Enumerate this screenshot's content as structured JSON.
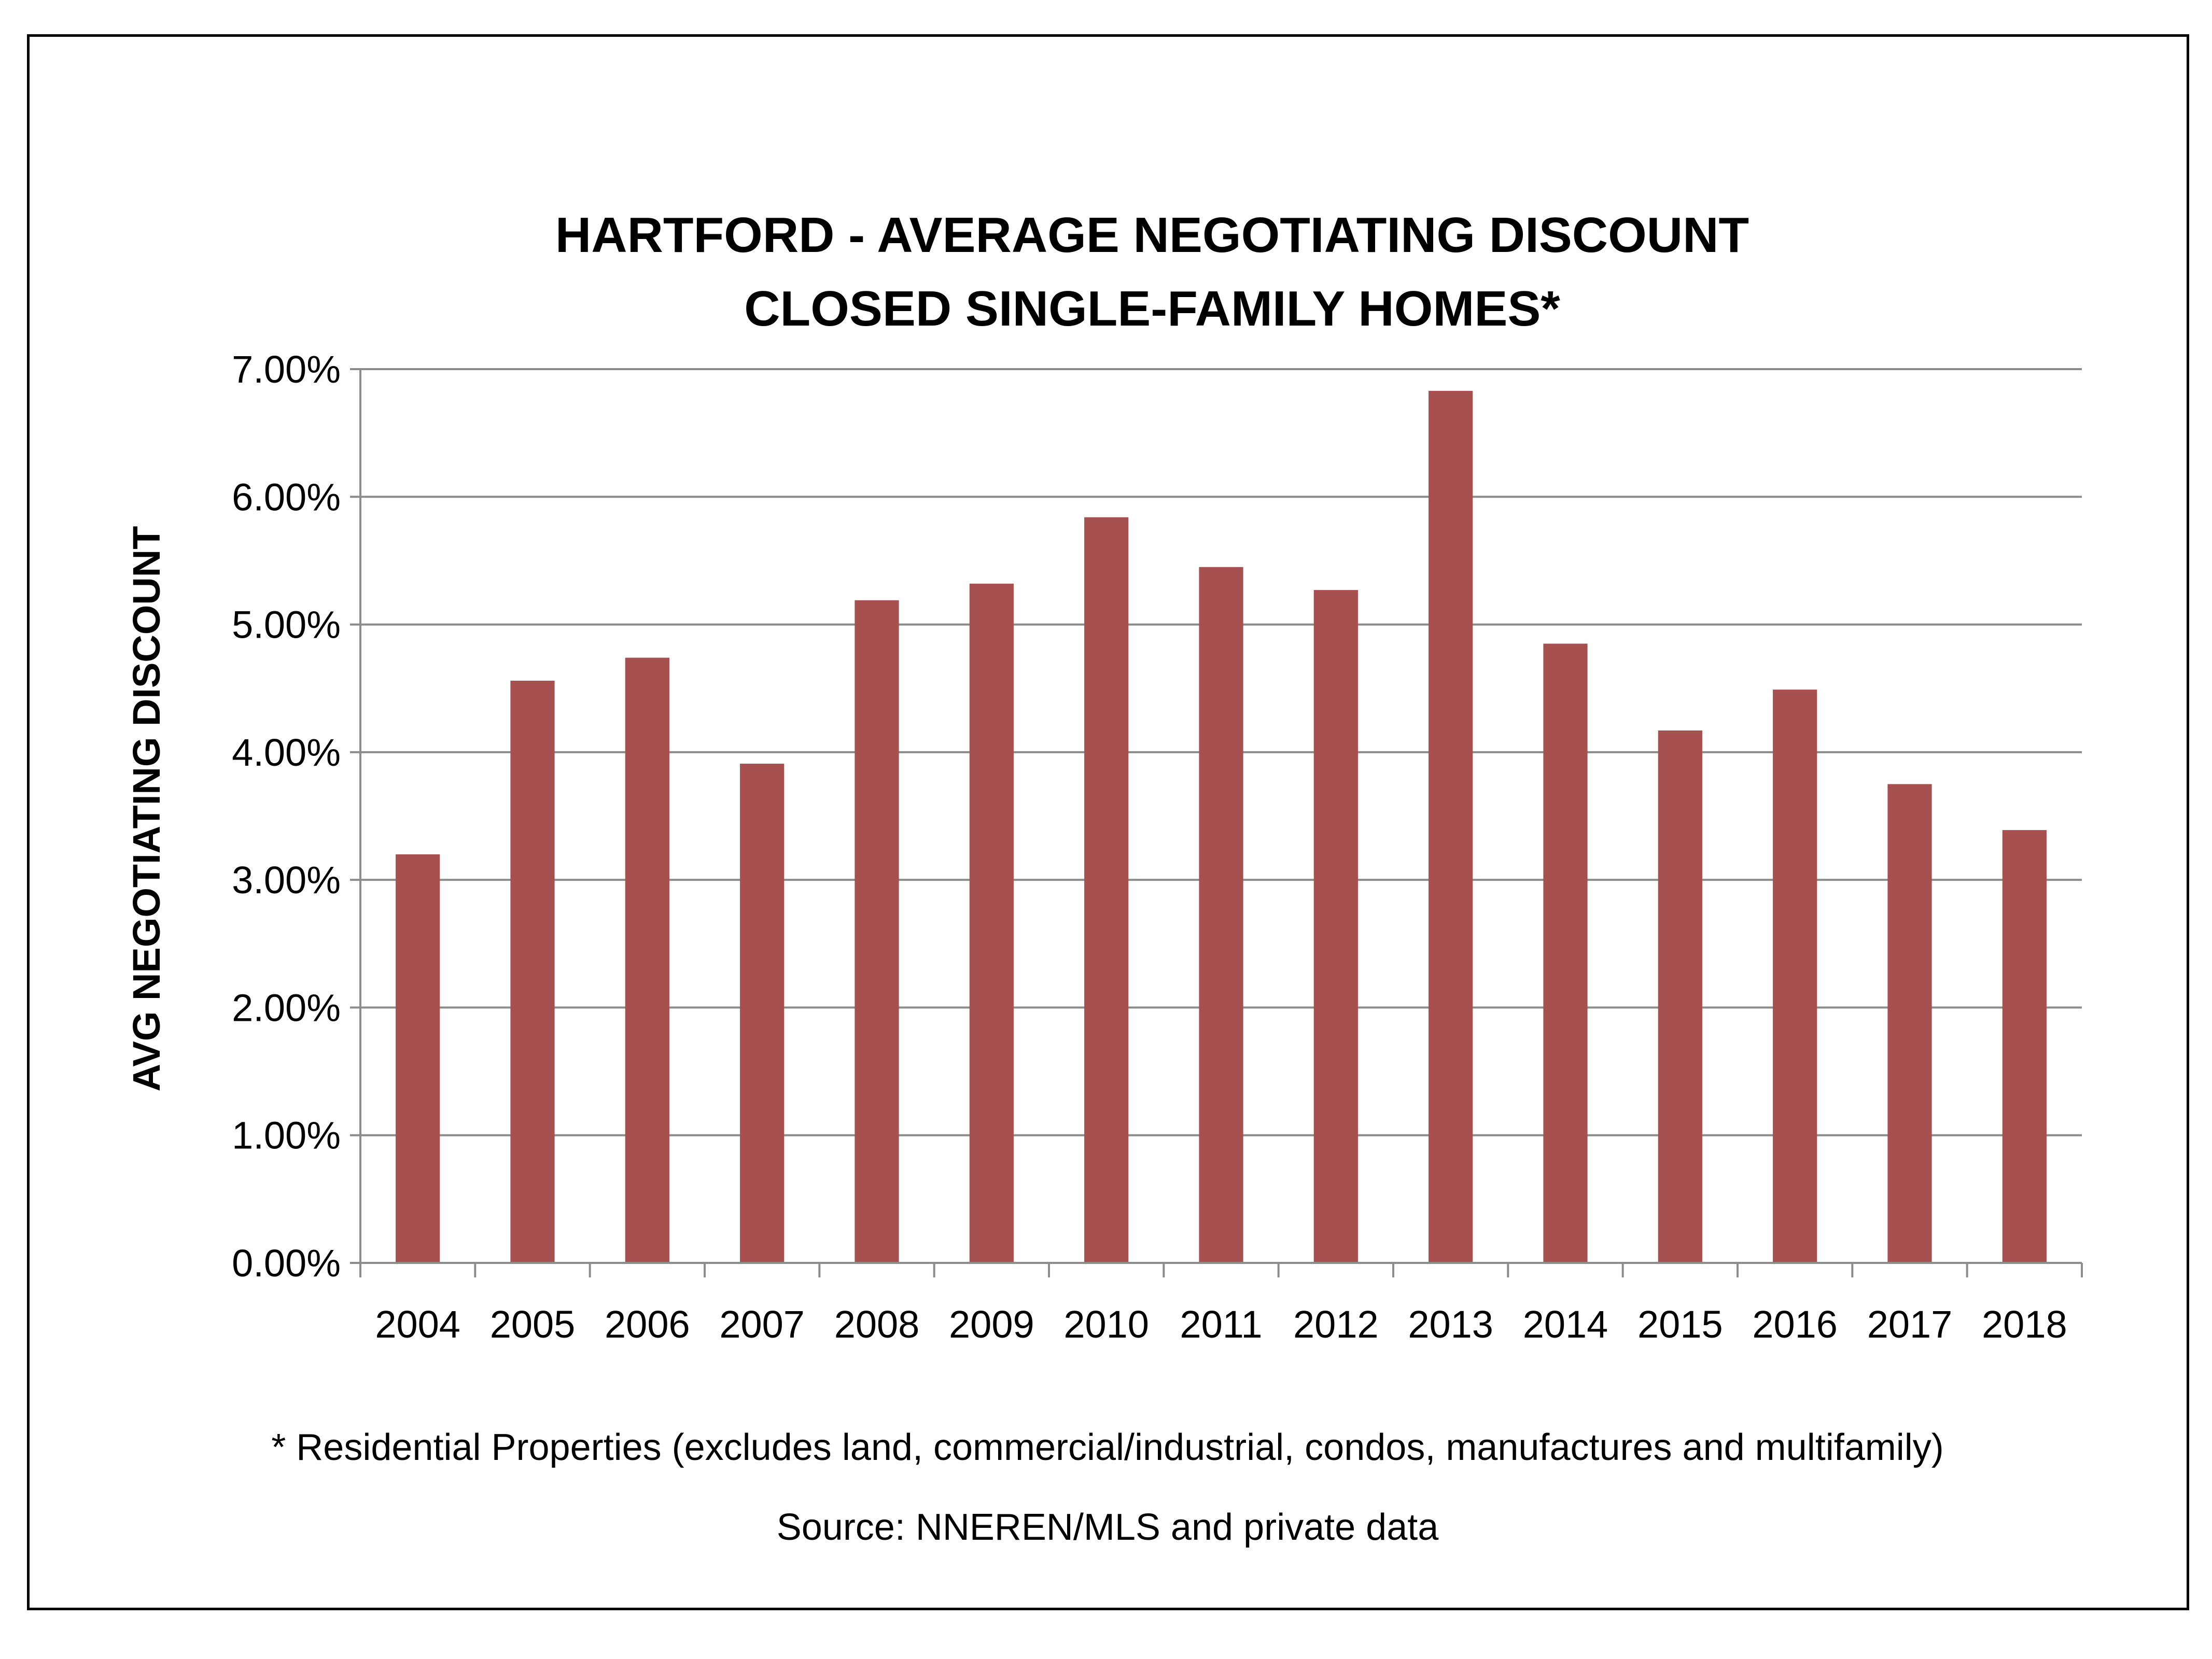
{
  "chart_data": {
    "type": "bar",
    "title_lines": [
      "HARTFORD - AVERAGE NEGOTIATING DISCOUNT",
      "CLOSED SINGLE-FAMILY HOMES*"
    ],
    "ylabel": "AVG NEGOTIATING DISCOUNT",
    "xlabel": "",
    "categories": [
      "2004",
      "2005",
      "2006",
      "2007",
      "2008",
      "2009",
      "2010",
      "2011",
      "2012",
      "2013",
      "2014",
      "2015",
      "2016",
      "2017",
      "2018"
    ],
    "values": [
      3.2,
      4.56,
      4.74,
      3.91,
      5.19,
      5.32,
      5.84,
      5.45,
      5.27,
      6.83,
      4.85,
      4.17,
      4.49,
      3.75,
      3.39
    ],
    "ylim": [
      0,
      7
    ],
    "yticks": [
      0,
      1,
      2,
      3,
      4,
      5,
      6,
      7
    ],
    "ytick_labels": [
      "0.00%",
      "1.00%",
      "2.00%",
      "3.00%",
      "4.00%",
      "5.00%",
      "6.00%",
      "7.00%"
    ],
    "grid": true,
    "bar_color": "#a65050"
  },
  "notes": {
    "footnote": "* Residential Properties (excludes land, commercial/industrial, condos, manufactures and multifamily)",
    "source": "Source: NNEREN/MLS and private data"
  }
}
